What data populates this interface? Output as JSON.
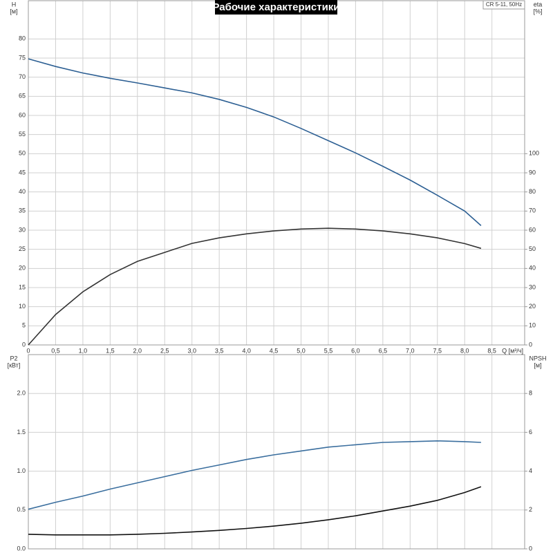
{
  "chart_data": [
    {
      "type": "line",
      "title": "Рабочие характеристики",
      "note": "CR 5-11, 50Hz",
      "x_label": "Q [м³/ч]",
      "y_label": "H",
      "y_unit": "[м]",
      "y2_label": "eta",
      "y2_unit": "[%]",
      "x": [
        0,
        0.5,
        1,
        1.5,
        2,
        2.5,
        3,
        3.5,
        4,
        4.5,
        5,
        5.5,
        6,
        6.5,
        7,
        7.5,
        8,
        8.3
      ],
      "series": [
        {
          "color": "#2c5f93",
          "values": [
            74.8,
            72.8,
            71.1,
            69.7,
            68.5,
            67.2,
            65.9,
            64.2,
            62.1,
            59.6,
            56.6,
            53.4,
            50.2,
            46.7,
            43.1,
            39.1,
            35.0,
            31.2
          ]
        },
        {
          "color": "#333333",
          "axis": "y2",
          "values": [
            0,
            15.9,
            27.8,
            36.8,
            43.7,
            48.4,
            53.1,
            56.0,
            58.1,
            59.6,
            60.6,
            61.0,
            60.6,
            59.6,
            58.1,
            56.0,
            53.0,
            50.5
          ]
        }
      ],
      "xlim": [
        0,
        9.1
      ],
      "xticks": [
        0,
        {
          "value": 0.5,
          "label": "0,5"
        },
        {
          "value": 1,
          "label": "1,0"
        },
        {
          "value": 1.5,
          "label": "1,5"
        },
        {
          "value": 2,
          "label": "2,0"
        },
        {
          "value": 2.5,
          "label": "2,5"
        },
        {
          "value": 3,
          "label": "3,0"
        },
        {
          "value": 3.5,
          "label": "3,5"
        },
        {
          "value": 4,
          "label": "4,0"
        },
        {
          "value": 4.5,
          "label": "4,5"
        },
        {
          "value": 5,
          "label": "5,0"
        },
        {
          "value": 5.5,
          "label": "5,5"
        },
        {
          "value": 6,
          "label": "6,0"
        },
        {
          "value": 6.5,
          "label": "6,5"
        },
        {
          "value": 7,
          "label": "7,0"
        },
        {
          "value": 7.5,
          "label": "7,5"
        },
        {
          "value": 8,
          "label": "8,0"
        },
        {
          "value": 8.5,
          "label": "8,5"
        }
      ],
      "ylim": [
        0,
        90
      ],
      "yticks": [
        0,
        5,
        10,
        15,
        20,
        25,
        30,
        35,
        40,
        45,
        50,
        55,
        60,
        65,
        70,
        75,
        80
      ],
      "y2lim": [
        0,
        180
      ],
      "y2ticks": [
        0,
        10,
        20,
        30,
        40,
        50,
        60,
        70,
        80,
        90,
        100
      ],
      "grid": true
    },
    {
      "type": "line",
      "y_label": "P2",
      "y_unit": "[кВт]",
      "y2_label": "NPSH",
      "y2_unit": "[м]",
      "x": [
        0,
        0.5,
        1,
        1.5,
        2,
        2.5,
        3,
        3.5,
        4,
        4.5,
        5,
        5.5,
        6,
        6.5,
        7,
        7.5,
        8,
        8.3
      ],
      "series": [
        {
          "color": "#3a6e9e",
          "values": [
            0.51,
            0.6,
            0.68,
            0.77,
            0.85,
            0.93,
            1.01,
            1.08,
            1.15,
            1.21,
            1.26,
            1.31,
            1.34,
            1.37,
            1.38,
            1.39,
            1.38,
            1.37
          ]
        },
        {
          "color": "#111111",
          "axis": "y2",
          "values": [
            0.75,
            0.72,
            0.72,
            0.72,
            0.75,
            0.8,
            0.87,
            0.95,
            1.05,
            1.17,
            1.32,
            1.5,
            1.7,
            1.95,
            2.2,
            2.5,
            2.9,
            3.2
          ]
        }
      ],
      "xlim": [
        0,
        9.1
      ],
      "xticks": [
        0,
        0.5,
        1,
        1.5,
        2,
        2.5,
        3,
        3.5,
        4,
        4.5,
        5,
        5.5,
        6,
        6.5,
        7,
        7.5,
        8,
        8.5
      ],
      "ylim": [
        0,
        2.5
      ],
      "yticks": [
        {
          "value": 0,
          "label": "0.0"
        },
        {
          "value": 0.5,
          "label": "0.5"
        },
        {
          "value": 1,
          "label": "1.0"
        },
        {
          "value": 1.5,
          "label": "1.5"
        },
        {
          "value": 2,
          "label": "2.0"
        }
      ],
      "y2lim": [
        0,
        10
      ],
      "y2ticks": [
        0,
        2,
        4,
        6,
        8
      ],
      "grid": true
    }
  ]
}
